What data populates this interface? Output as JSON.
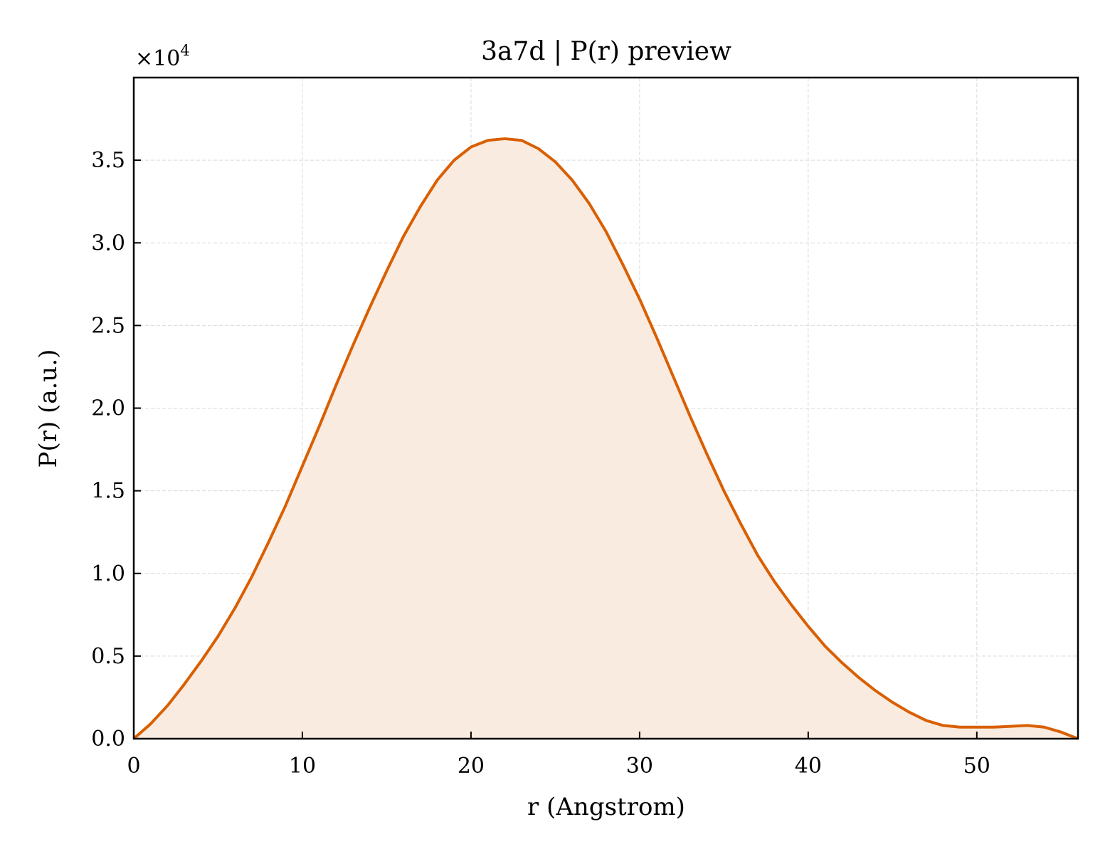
{
  "chart_data": {
    "type": "area",
    "title": "3a7d | P(r) preview",
    "xlabel": "r (Angstrom)",
    "ylabel": "P(r) (a.u.)",
    "y_multiplier_label": "×10",
    "y_multiplier_exp": "4",
    "xlim": [
      0,
      56
    ],
    "ylim": [
      0,
      40000
    ],
    "xticks": [
      0,
      10,
      20,
      30,
      40,
      50
    ],
    "xtick_labels": [
      "0",
      "10",
      "20",
      "30",
      "40",
      "50"
    ],
    "yticks": [
      0,
      5000,
      10000,
      15000,
      20000,
      25000,
      30000,
      35000
    ],
    "ytick_labels": [
      "0.0",
      "0.5",
      "1.0",
      "1.5",
      "2.0",
      "2.5",
      "3.0",
      "3.5"
    ],
    "grid": true,
    "line_color": "#d95f02",
    "fill_color": "#f9ebe0",
    "series": [
      {
        "x": [
          0,
          1,
          2,
          3,
          4,
          5,
          6,
          7,
          8,
          9,
          10,
          11,
          12,
          13,
          14,
          15,
          16,
          17,
          18,
          19,
          20,
          21,
          22,
          23,
          24,
          25,
          26,
          27,
          28,
          29,
          30,
          31,
          32,
          33,
          34,
          35,
          36,
          37,
          38,
          39,
          40,
          41,
          42,
          43,
          44,
          45,
          46,
          47,
          48,
          49,
          50,
          51,
          52,
          53,
          54,
          55,
          56
        ],
        "y": [
          0,
          900,
          2000,
          3300,
          4700,
          6200,
          7900,
          9800,
          11900,
          14100,
          16500,
          18900,
          21400,
          23800,
          26100,
          28300,
          30400,
          32200,
          33800,
          35000,
          35800,
          36200,
          36300,
          36200,
          35700,
          34900,
          33800,
          32400,
          30700,
          28700,
          26600,
          24300,
          21900,
          19500,
          17200,
          15000,
          13000,
          11100,
          9500,
          8100,
          6800,
          5600,
          4600,
          3700,
          2900,
          2200,
          1600,
          1100,
          800,
          700,
          700,
          700,
          750,
          800,
          700,
          400,
          0
        ]
      }
    ]
  }
}
